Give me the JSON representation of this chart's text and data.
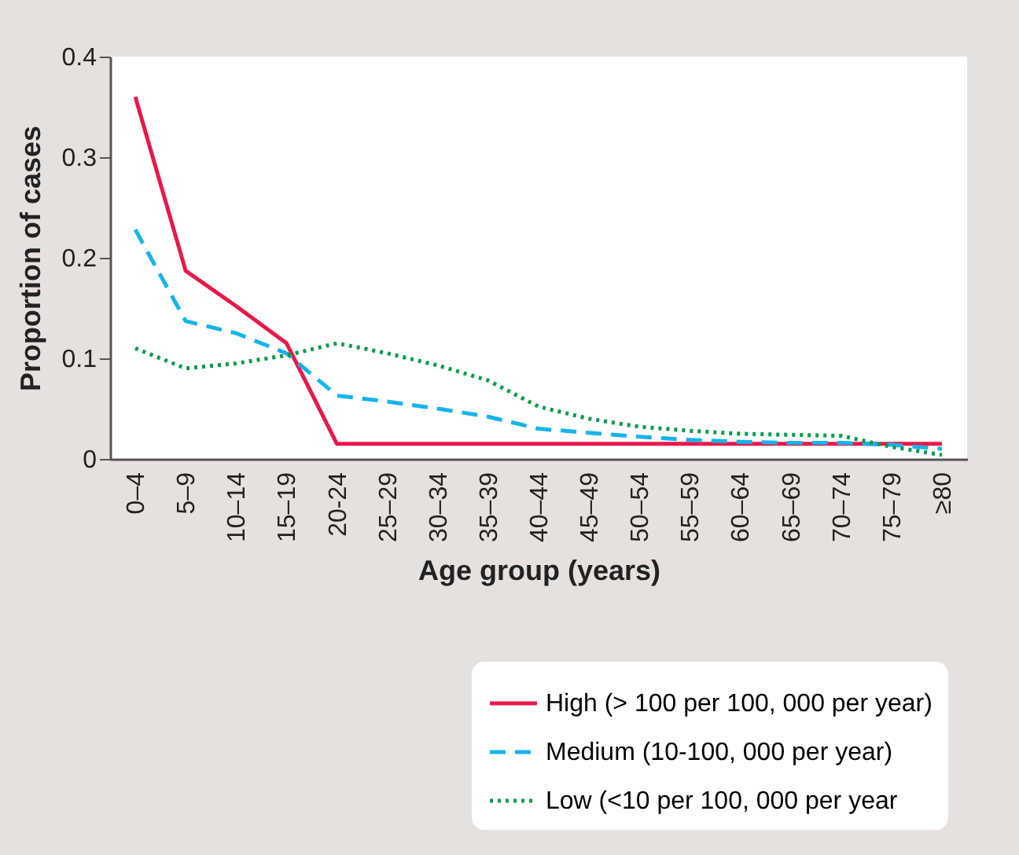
{
  "chart_data": {
    "type": "line",
    "xlabel": "Age group (years)",
    "ylabel": "Proportion of cases",
    "categories": [
      "0–4",
      "5–9",
      "10–14",
      "15–19",
      "20-24",
      "25–29",
      "30–34",
      "35–39",
      "40–44",
      "45–49",
      "50–54",
      "55–59",
      "60–64",
      "65–69",
      "70–74",
      "75–79",
      "≥80"
    ],
    "series": [
      {
        "name": "High (> 100 per 100, 000 per year)",
        "color": "#e8194a",
        "line_style": "solid",
        "values": [
          0.36,
          0.187,
          0.152,
          0.115,
          0.015,
          0.015,
          0.015,
          0.015,
          0.015,
          0.015,
          0.015,
          0.015,
          0.015,
          0.015,
          0.015,
          0.015,
          0.015
        ]
      },
      {
        "name": "Medium (10-100, 000 per year)",
        "color": "#16b3ea",
        "line_style": "dashed",
        "values": [
          0.228,
          0.137,
          0.125,
          0.105,
          0.063,
          0.057,
          0.05,
          0.042,
          0.03,
          0.026,
          0.022,
          0.019,
          0.017,
          0.016,
          0.016,
          0.014,
          0.01
        ]
      },
      {
        "name": "Low (<10 per 100, 000 per year",
        "color": "#0a9a4a",
        "line_style": "dotted",
        "values": [
          0.11,
          0.09,
          0.095,
          0.103,
          0.115,
          0.105,
          0.093,
          0.078,
          0.052,
          0.04,
          0.032,
          0.028,
          0.025,
          0.024,
          0.023,
          0.012,
          0.004
        ]
      }
    ],
    "ylim": [
      0,
      0.4
    ],
    "yticks": [
      0,
      0.1,
      0.2,
      0.3,
      0.4
    ],
    "grid": false,
    "legend": "bottom right"
  }
}
